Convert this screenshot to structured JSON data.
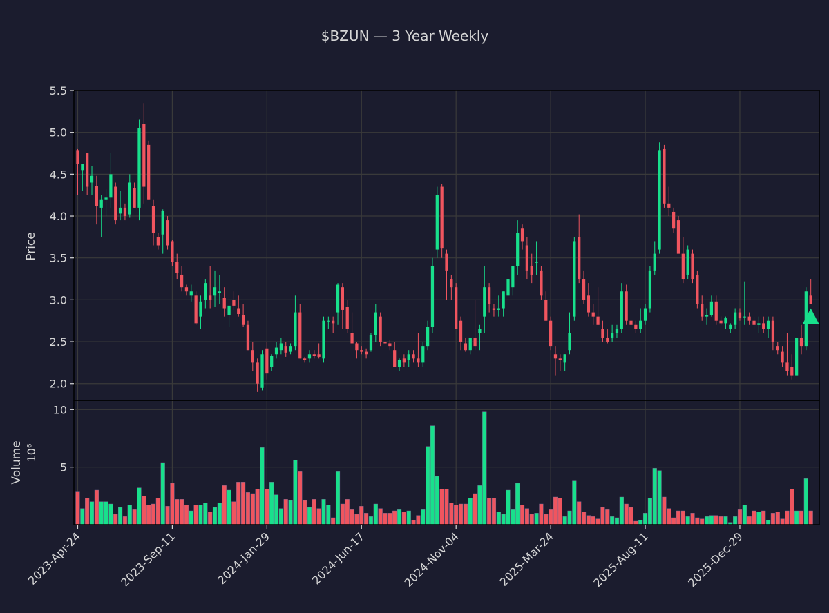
{
  "title": "$BZUN — 3 Year Weekly",
  "colors": {
    "background": "#1b1c2e",
    "up": "#18e08c",
    "down": "#f0555f",
    "grid": "#3a3a3a",
    "text": "#d6d6d6",
    "axis": "#000000"
  },
  "chart_data": {
    "type": "candlestick",
    "title": "$BZUN — 3 Year Weekly",
    "price_panel": {
      "ylabel": "Price",
      "ylim": [
        1.8,
        5.5
      ],
      "yticks": [
        "2.0",
        "2.5",
        "3.0",
        "3.5",
        "4.0",
        "4.5",
        "5.0",
        "5.5"
      ],
      "grid": true
    },
    "volume_panel": {
      "ylabel": "Volume",
      "scale_label": "10⁶",
      "ylim": [
        0,
        10.8
      ],
      "yticks": [
        "5",
        "10"
      ],
      "grid": true
    },
    "xlabels": [
      "2023-Apr-24",
      "2023-Sep-11",
      "2024-Jan-29",
      "2024-Jun-17",
      "2024-Nov-04",
      "2025-Mar-24",
      "2025-Aug-11",
      "2025-Dec-29"
    ],
    "marker": {
      "type": "up-triangle",
      "index": 155,
      "price": 2.8
    },
    "ohlcv": [
      [
        4.78,
        4.8,
        4.25,
        4.62,
        2.9
      ],
      [
        4.55,
        4.62,
        4.3,
        4.62,
        1.4
      ],
      [
        4.75,
        4.75,
        4.25,
        4.35,
        2.3
      ],
      [
        4.4,
        4.6,
        4.25,
        4.48,
        2.0
      ],
      [
        4.36,
        4.48,
        3.9,
        4.12,
        3.0
      ],
      [
        4.1,
        4.25,
        3.75,
        4.2,
        2.0
      ],
      [
        4.2,
        4.32,
        4.0,
        4.22,
        2.0
      ],
      [
        4.22,
        4.75,
        4.1,
        4.5,
        1.8
      ],
      [
        4.35,
        4.4,
        3.9,
        3.95,
        0.9
      ],
      [
        4.03,
        4.3,
        3.95,
        4.1,
        1.5
      ],
      [
        4.1,
        4.15,
        3.95,
        4.0,
        0.7
      ],
      [
        4.02,
        4.5,
        3.98,
        4.4,
        1.7
      ],
      [
        4.33,
        4.4,
        4.1,
        4.1,
        1.3
      ],
      [
        4.1,
        5.15,
        3.95,
        5.05,
        3.2
      ],
      [
        5.1,
        5.35,
        4.15,
        4.35,
        2.5
      ],
      [
        4.85,
        4.9,
        4.2,
        4.2,
        1.7
      ],
      [
        4.12,
        4.2,
        3.65,
        3.8,
        1.8
      ],
      [
        3.75,
        3.8,
        3.6,
        3.65,
        2.3
      ],
      [
        3.78,
        4.08,
        3.55,
        4.06,
        5.4
      ],
      [
        3.95,
        4.0,
        3.6,
        3.65,
        1.6
      ],
      [
        3.7,
        3.72,
        3.4,
        3.45,
        3.6
      ],
      [
        3.45,
        3.55,
        3.25,
        3.32,
        2.2
      ],
      [
        3.3,
        3.4,
        3.1,
        3.15,
        2.2
      ],
      [
        3.15,
        3.18,
        3.05,
        3.1,
        1.7
      ],
      [
        3.05,
        3.18,
        2.98,
        3.1,
        1.2
      ],
      [
        3.05,
        3.1,
        2.7,
        2.72,
        1.7
      ],
      [
        2.8,
        3.05,
        2.65,
        2.98,
        1.7
      ],
      [
        3.0,
        3.25,
        2.9,
        3.2,
        1.9
      ],
      [
        3.05,
        3.4,
        2.9,
        3.0,
        1.1
      ],
      [
        3.05,
        3.35,
        2.92,
        3.15,
        1.5
      ],
      [
        3.08,
        3.3,
        2.95,
        3.1,
        1.9
      ],
      [
        3.02,
        3.15,
        2.8,
        2.9,
        3.4
      ],
      [
        2.82,
        2.92,
        2.68,
        2.93,
        3.0
      ],
      [
        3.0,
        3.1,
        2.88,
        2.93,
        2.0
      ],
      [
        2.9,
        3.05,
        2.8,
        2.83,
        3.7
      ],
      [
        2.82,
        2.95,
        2.68,
        2.7,
        3.7
      ],
      [
        2.7,
        2.75,
        2.4,
        2.4,
        2.8
      ],
      [
        2.4,
        2.5,
        2.15,
        2.25,
        2.7
      ],
      [
        2.25,
        2.3,
        1.9,
        2.0,
        3.1
      ],
      [
        1.95,
        2.4,
        1.92,
        2.35,
        6.7
      ],
      [
        2.42,
        2.5,
        2.05,
        2.12,
        3.1
      ],
      [
        2.2,
        2.35,
        2.15,
        2.33,
        3.7
      ],
      [
        2.35,
        2.5,
        2.3,
        2.43,
        2.6
      ],
      [
        2.4,
        2.55,
        2.35,
        2.48,
        1.4
      ],
      [
        2.45,
        2.5,
        2.32,
        2.37,
        2.2
      ],
      [
        2.38,
        2.48,
        2.35,
        2.45,
        2.1
      ],
      [
        2.45,
        3.05,
        2.4,
        2.85,
        5.6
      ],
      [
        2.85,
        2.95,
        2.3,
        2.3,
        4.6
      ],
      [
        2.3,
        2.32,
        2.25,
        2.28,
        2.1
      ],
      [
        2.3,
        2.4,
        2.25,
        2.35,
        1.5
      ],
      [
        2.35,
        2.4,
        2.3,
        2.33,
        2.2
      ],
      [
        2.35,
        2.48,
        2.3,
        2.32,
        1.4
      ],
      [
        2.3,
        2.8,
        2.25,
        2.75,
        2.2
      ],
      [
        2.75,
        2.8,
        2.65,
        2.75,
        1.7
      ],
      [
        2.75,
        2.8,
        2.6,
        2.72,
        0.6
      ],
      [
        2.85,
        3.2,
        2.7,
        3.18,
        4.6
      ],
      [
        3.15,
        3.2,
        2.65,
        2.88,
        1.8
      ],
      [
        2.92,
        3.0,
        2.6,
        2.65,
        2.2
      ],
      [
        2.6,
        2.85,
        2.48,
        2.48,
        1.3
      ],
      [
        2.48,
        2.5,
        2.3,
        2.4,
        0.9
      ],
      [
        2.4,
        2.45,
        2.35,
        2.38,
        1.6
      ],
      [
        2.38,
        2.42,
        2.3,
        2.35,
        1.0
      ],
      [
        2.4,
        2.6,
        2.38,
        2.58,
        0.7
      ],
      [
        2.58,
        2.95,
        2.5,
        2.85,
        1.8
      ],
      [
        2.8,
        2.85,
        2.45,
        2.5,
        1.4
      ],
      [
        2.5,
        2.55,
        2.42,
        2.48,
        1.0
      ],
      [
        2.48,
        2.52,
        2.4,
        2.45,
        1.0
      ],
      [
        2.4,
        2.5,
        2.2,
        2.2,
        1.2
      ],
      [
        2.2,
        2.3,
        2.15,
        2.28,
        1.3
      ],
      [
        2.3,
        2.35,
        2.2,
        2.25,
        1.1
      ],
      [
        2.28,
        2.4,
        2.2,
        2.35,
        1.2
      ],
      [
        2.35,
        2.4,
        2.25,
        2.3,
        0.4
      ],
      [
        2.3,
        2.6,
        2.2,
        2.25,
        0.8
      ],
      [
        2.25,
        2.5,
        2.2,
        2.45,
        1.3
      ],
      [
        2.45,
        2.75,
        2.4,
        2.68,
        6.8
      ],
      [
        2.68,
        3.5,
        2.6,
        3.4,
        8.6
      ],
      [
        3.6,
        4.35,
        3.5,
        4.25,
        4.2
      ],
      [
        4.35,
        4.38,
        3.5,
        3.62,
        3.1
      ],
      [
        3.55,
        3.6,
        3.0,
        3.35,
        3.1
      ],
      [
        3.25,
        3.3,
        3.0,
        3.15,
        1.9
      ],
      [
        3.15,
        3.2,
        2.8,
        2.65,
        1.7
      ],
      [
        2.75,
        2.8,
        2.4,
        2.5,
        1.8
      ],
      [
        2.48,
        2.55,
        2.38,
        2.4,
        1.8
      ],
      [
        2.4,
        2.55,
        2.35,
        2.55,
        2.3
      ],
      [
        2.55,
        3.0,
        2.4,
        2.45,
        2.7
      ],
      [
        2.6,
        2.7,
        2.4,
        2.65,
        3.4
      ],
      [
        2.8,
        3.4,
        2.6,
        3.15,
        9.8
      ],
      [
        3.15,
        3.2,
        2.85,
        2.95,
        2.3
      ],
      [
        2.9,
        2.95,
        2.8,
        2.88,
        2.3
      ],
      [
        2.88,
        3.05,
        2.8,
        2.9,
        1.1
      ],
      [
        2.9,
        3.1,
        2.8,
        3.1,
        0.9
      ],
      [
        3.05,
        3.5,
        3.0,
        3.25,
        3.0
      ],
      [
        3.15,
        3.4,
        3.05,
        3.4,
        1.3
      ],
      [
        3.4,
        3.95,
        3.3,
        3.8,
        3.6
      ],
      [
        3.85,
        3.9,
        3.6,
        3.7,
        1.7
      ],
      [
        3.65,
        3.75,
        3.25,
        3.35,
        1.4
      ],
      [
        3.4,
        3.55,
        3.2,
        3.3,
        0.9
      ],
      [
        3.45,
        3.7,
        3.3,
        3.45,
        1.0
      ],
      [
        3.35,
        3.4,
        3.0,
        3.05,
        1.8
      ],
      [
        3.0,
        3.1,
        2.75,
        2.75,
        0.9
      ],
      [
        2.75,
        2.8,
        2.4,
        2.45,
        1.3
      ],
      [
        2.35,
        2.45,
        2.1,
        2.3,
        2.4
      ],
      [
        2.3,
        2.35,
        2.15,
        2.28,
        2.3
      ],
      [
        2.25,
        2.35,
        2.15,
        2.35,
        0.7
      ],
      [
        2.4,
        2.85,
        2.35,
        2.6,
        1.2
      ],
      [
        2.8,
        3.75,
        2.75,
        3.7,
        3.8
      ],
      [
        3.75,
        4.02,
        3.2,
        3.25,
        2.0
      ],
      [
        3.25,
        3.35,
        2.95,
        3.0,
        1.1
      ],
      [
        3.05,
        3.2,
        2.8,
        2.85,
        0.8
      ],
      [
        2.85,
        2.95,
        2.7,
        2.8,
        0.7
      ],
      [
        2.8,
        3.15,
        2.7,
        2.7,
        0.5
      ],
      [
        2.65,
        2.75,
        2.5,
        2.55,
        1.5
      ],
      [
        2.55,
        2.65,
        2.48,
        2.5,
        1.3
      ],
      [
        2.55,
        2.7,
        2.5,
        2.6,
        0.7
      ],
      [
        2.6,
        2.7,
        2.55,
        2.65,
        0.6
      ],
      [
        2.65,
        3.2,
        2.6,
        3.1,
        2.4
      ],
      [
        3.1,
        3.18,
        2.7,
        2.75,
        1.8
      ],
      [
        2.75,
        2.8,
        2.62,
        2.7,
        1.5
      ],
      [
        2.7,
        2.75,
        2.6,
        2.65,
        0.3
      ],
      [
        2.65,
        2.9,
        2.6,
        2.75,
        0.4
      ],
      [
        2.75,
        2.95,
        2.7,
        2.9,
        1.0
      ],
      [
        2.9,
        3.4,
        2.85,
        3.35,
        2.3
      ],
      [
        3.35,
        3.7,
        3.3,
        3.55,
        4.9
      ],
      [
        3.6,
        4.88,
        3.55,
        4.78,
        4.7
      ],
      [
        4.8,
        4.85,
        4.1,
        4.15,
        2.4
      ],
      [
        4.15,
        4.35,
        4.0,
        4.1,
        1.4
      ],
      [
        4.05,
        4.1,
        3.8,
        3.85,
        0.6
      ],
      [
        3.95,
        4.0,
        3.6,
        3.55,
        1.2
      ],
      [
        3.55,
        3.75,
        3.2,
        3.25,
        1.2
      ],
      [
        3.3,
        3.65,
        3.25,
        3.6,
        0.7
      ],
      [
        3.55,
        3.6,
        3.2,
        3.25,
        1.0
      ],
      [
        3.3,
        3.35,
        2.9,
        2.95,
        0.6
      ],
      [
        2.95,
        3.05,
        2.75,
        2.8,
        0.5
      ],
      [
        2.8,
        2.9,
        2.7,
        2.82,
        0.7
      ],
      [
        2.82,
        3.05,
        2.8,
        2.98,
        0.8
      ],
      [
        2.98,
        3.05,
        2.7,
        2.75,
        0.8
      ],
      [
        2.75,
        2.8,
        2.7,
        2.72,
        0.7
      ],
      [
        2.72,
        2.8,
        2.65,
        2.78,
        0.7
      ],
      [
        2.65,
        2.72,
        2.6,
        2.7,
        0.2
      ],
      [
        2.7,
        2.9,
        2.65,
        2.85,
        0.7
      ],
      [
        2.85,
        2.9,
        2.75,
        2.78,
        1.3
      ],
      [
        2.8,
        3.22,
        2.7,
        2.8,
        1.7
      ],
      [
        2.8,
        2.85,
        2.7,
        2.75,
        0.7
      ],
      [
        2.75,
        2.8,
        2.65,
        2.7,
        1.2
      ],
      [
        2.7,
        2.8,
        2.6,
        2.72,
        1.1
      ],
      [
        2.72,
        2.8,
        2.6,
        2.65,
        1.2
      ],
      [
        2.65,
        2.8,
        2.55,
        2.75,
        0.4
      ],
      [
        2.75,
        2.8,
        2.4,
        2.5,
        1.0
      ],
      [
        2.45,
        2.5,
        2.35,
        2.4,
        1.1
      ],
      [
        2.38,
        2.45,
        2.2,
        2.25,
        0.5
      ],
      [
        2.25,
        2.6,
        2.1,
        2.15,
        1.2
      ],
      [
        2.2,
        2.35,
        2.05,
        2.1,
        3.1
      ],
      [
        2.1,
        2.55,
        2.1,
        2.55,
        1.2
      ],
      [
        2.55,
        2.7,
        2.35,
        2.45,
        1.2
      ],
      [
        2.45,
        3.15,
        2.4,
        3.1,
        4.0
      ],
      [
        3.05,
        3.25,
        2.95,
        2.95,
        1.2
      ]
    ]
  }
}
